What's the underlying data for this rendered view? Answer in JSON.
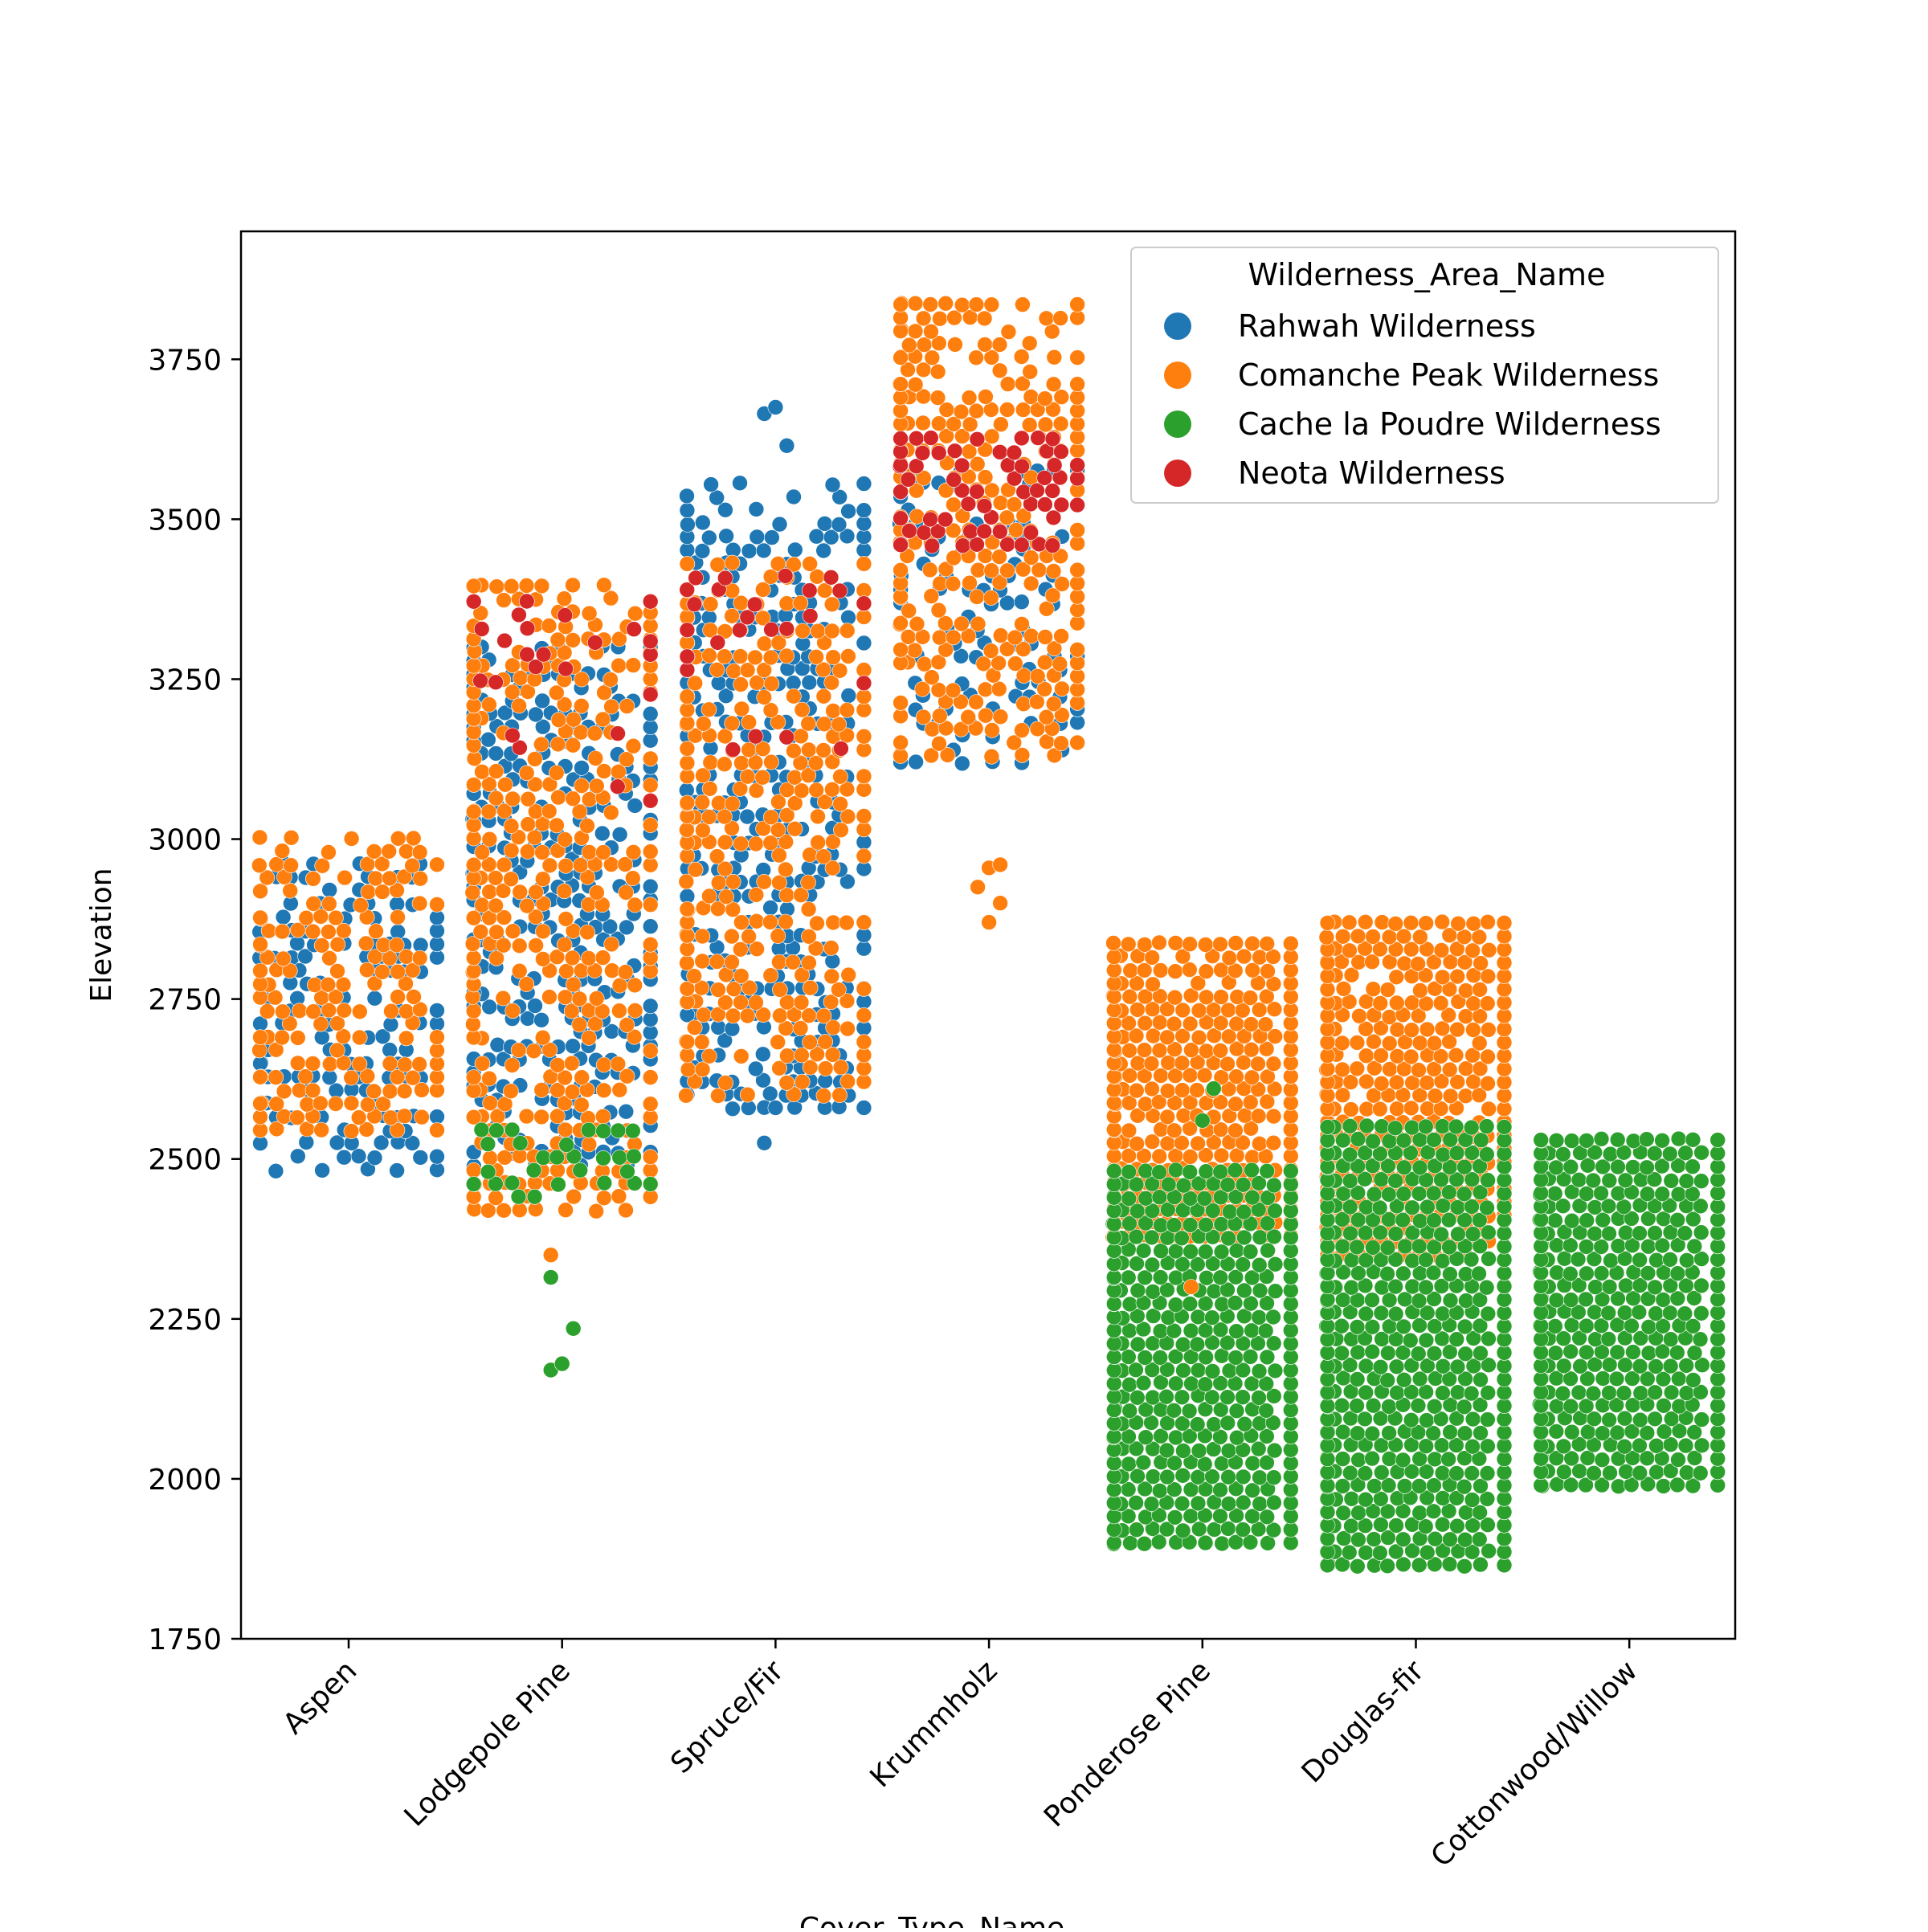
{
  "chart_data": {
    "type": "scatter",
    "subtype": "swarm",
    "title": "",
    "xlabel": "Cover_Type_Name",
    "ylabel": "Elevation",
    "ylim": [
      1750,
      3950
    ],
    "yticks": [
      1750,
      2000,
      2250,
      2500,
      2750,
      3000,
      3250,
      3500,
      3750
    ],
    "categories": [
      "Aspen",
      "Lodgepole Pine",
      "Spruce/Fir",
      "Krummholz",
      "Ponderose Pine",
      "Douglas-fir",
      "Cottonwood/Willow"
    ],
    "grid": false,
    "legend": {
      "title": "Wilderness_Area_Name",
      "placement": "upper right",
      "entries": [
        {
          "name": "Rahwah Wilderness",
          "color": "#1f77b4"
        },
        {
          "name": "Comanche Peak Wilderness",
          "color": "#ff7f0e"
        },
        {
          "name": "Cache la Poudre Wilderness",
          "color": "#2ca02c"
        },
        {
          "name": "Neota Wilderness",
          "color": "#d62728"
        }
      ]
    },
    "series": [
      {
        "name": "Rahwah Wilderness",
        "color": "#1f77b4",
        "bands": [
          {
            "category": "Aspen",
            "ymin": 2483,
            "ymax": 2980,
            "density": 0.45
          },
          {
            "category": "Lodgepole Pine",
            "ymin": 2490,
            "ymax": 3300,
            "density": 0.5
          },
          {
            "category": "Spruce/Fir",
            "ymin": 2580,
            "ymax": 3560,
            "density": 0.45
          },
          {
            "category": "Krummholz",
            "ymin": 3120,
            "ymax": 3580,
            "density": 0.3
          }
        ],
        "outliers": [
          {
            "category": "Spruce/Fir",
            "y": 2525
          },
          {
            "category": "Spruce/Fir",
            "y": 2580
          },
          {
            "category": "Spruce/Fir",
            "y": 3615
          },
          {
            "category": "Spruce/Fir",
            "y": 3665
          },
          {
            "category": "Spruce/Fir",
            "y": 3675
          }
        ]
      },
      {
        "name": "Comanche Peak Wilderness",
        "color": "#ff7f0e",
        "bands": [
          {
            "category": "Aspen",
            "ymin": 2545,
            "ymax": 3005,
            "density": 0.55
          },
          {
            "category": "Lodgepole Pine",
            "ymin": 2420,
            "ymax": 3410,
            "density": 0.5
          },
          {
            "category": "Spruce/Fir",
            "ymin": 2600,
            "ymax": 3450,
            "density": 0.55
          },
          {
            "category": "Krummholz",
            "ymin": 3130,
            "ymax": 3850,
            "density": 0.6
          },
          {
            "category": "Ponderose Pine",
            "ymin": 2380,
            "ymax": 2850,
            "density": 0.95
          },
          {
            "category": "Douglas-fir",
            "ymin": 2350,
            "ymax": 2885,
            "density": 0.95
          }
        ],
        "outliers": [
          {
            "category": "Lodgepole Pine",
            "y": 2350
          },
          {
            "category": "Krummholz",
            "y": 2870
          },
          {
            "category": "Krummholz",
            "y": 2900
          },
          {
            "category": "Krummholz",
            "y": 2925
          },
          {
            "category": "Krummholz",
            "y": 2955
          },
          {
            "category": "Krummholz",
            "y": 2960
          },
          {
            "category": "Ponderose Pine",
            "y": 2300
          }
        ]
      },
      {
        "name": "Cache la Poudre Wilderness",
        "color": "#2ca02c",
        "bands": [
          {
            "category": "Lodgepole Pine",
            "ymin": 2440,
            "ymax": 2560,
            "density": 0.3
          },
          {
            "category": "Ponderose Pine",
            "ymin": 1900,
            "ymax": 2500,
            "density": 1.0
          },
          {
            "category": "Douglas-fir",
            "ymin": 1865,
            "ymax": 2560,
            "density": 1.0
          },
          {
            "category": "Cottonwood/Willow",
            "ymin": 1990,
            "ymax": 2530,
            "density": 1.0
          }
        ],
        "outliers": [
          {
            "category": "Lodgepole Pine",
            "y": 2170
          },
          {
            "category": "Lodgepole Pine",
            "y": 2180
          },
          {
            "category": "Lodgepole Pine",
            "y": 2235
          },
          {
            "category": "Lodgepole Pine",
            "y": 2315
          },
          {
            "category": "Ponderose Pine",
            "y": 2560
          },
          {
            "category": "Ponderose Pine",
            "y": 2610
          }
        ]
      },
      {
        "name": "Neota Wilderness",
        "color": "#d62728",
        "bands": [
          {
            "category": "Lodgepole Pine",
            "ymin": 3060,
            "ymax": 3380,
            "density": 0.15
          },
          {
            "category": "Spruce/Fir",
            "ymin": 3140,
            "ymax": 3420,
            "density": 0.12
          },
          {
            "category": "Krummholz",
            "ymin": 3460,
            "ymax": 3640,
            "density": 0.55
          }
        ],
        "outliers": []
      }
    ]
  }
}
